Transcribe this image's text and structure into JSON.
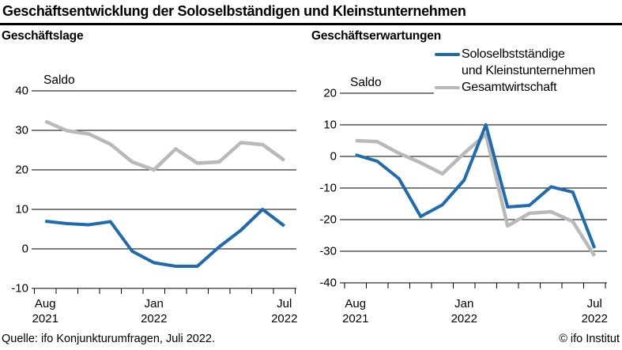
{
  "header": {
    "title": "Geschäftsentwicklung der Soloselbständigen und Kleinstunternehmen"
  },
  "legend": {
    "series1_line1": "Soloselbstständige",
    "series1_line2": "und Kleinstunternehmen",
    "series2": "Gesamtwirtschaft",
    "position": "top-right"
  },
  "colors": {
    "series1": "#1e6bb0",
    "series2": "#b9b9b9",
    "grid": "#000000",
    "text": "#000000"
  },
  "footer": {
    "source": "Quelle: ifo Konjunkturumfragen, Juli 2022.",
    "copyright": "© ifo Institut"
  },
  "chart_data": [
    {
      "type": "line",
      "title": "Geschäftslage",
      "unit_label": "Saldo",
      "x": [
        "Aug 2021",
        "Sep 2021",
        "Okt 2021",
        "Nov 2021",
        "Dez 2021",
        "Jan 2022",
        "Feb 2022",
        "Mär 2022",
        "Apr 2022",
        "Mai 2022",
        "Jun 2022",
        "Jul 2022"
      ],
      "x_tick_labels": [
        {
          "index": 0,
          "line1": "Aug",
          "line2": "2021"
        },
        {
          "index": 5,
          "line1": "Jan",
          "line2": "2022"
        },
        {
          "index": 11,
          "line1": "Jul",
          "line2": "2022"
        }
      ],
      "ylim": [
        -10,
        40
      ],
      "y_ticks": [
        40,
        30,
        20,
        10,
        0,
        -10
      ],
      "grid": true,
      "series": [
        {
          "name": "Soloselbstständige und Kleinstunternehmen",
          "color_key": "series1",
          "values": [
            7,
            6.4,
            6.1,
            6.9,
            -0.6,
            -3.5,
            -4.4,
            -4.4,
            0.5,
            4.7,
            10,
            5.8
          ]
        },
        {
          "name": "Gesamtwirtschaft",
          "color_key": "series2",
          "values": [
            32.3,
            29.9,
            29.1,
            26.5,
            22,
            20,
            25.3,
            21.7,
            22,
            26.9,
            26.4,
            22.4
          ]
        }
      ]
    },
    {
      "type": "line",
      "title": "Geschäftserwartungen",
      "unit_label": "Saldo",
      "x": [
        "Aug 2021",
        "Sep 2021",
        "Okt 2021",
        "Nov 2021",
        "Dez 2021",
        "Jan 2022",
        "Feb 2022",
        "Mär 2022",
        "Apr 2022",
        "Mai 2022",
        "Jun 2022",
        "Jul 2022"
      ],
      "x_tick_labels": [
        {
          "index": 0,
          "line1": "Aug",
          "line2": "2021"
        },
        {
          "index": 5,
          "line1": "Jan",
          "line2": "2022"
        },
        {
          "index": 11,
          "line1": "Jul",
          "line2": "2022"
        }
      ],
      "ylim": [
        -40,
        20
      ],
      "y_ticks": [
        20,
        10,
        0,
        -10,
        -20,
        -30,
        -40
      ],
      "grid": true,
      "series": [
        {
          "name": "Soloselbstständige und Kleinstunternehmen",
          "color_key": "series1",
          "values": [
            0.5,
            -1.5,
            -7,
            -19,
            -15.3,
            -7.5,
            10,
            -16,
            -15.5,
            -9.6,
            -11.3,
            -29
          ]
        },
        {
          "name": "Gesamtwirtschaft",
          "color_key": "series2",
          "values": [
            5,
            4.7,
            1,
            -2,
            -5.5,
            1,
            7,
            -22,
            -18,
            -17.5,
            -20.6,
            -31.5
          ]
        }
      ]
    }
  ]
}
